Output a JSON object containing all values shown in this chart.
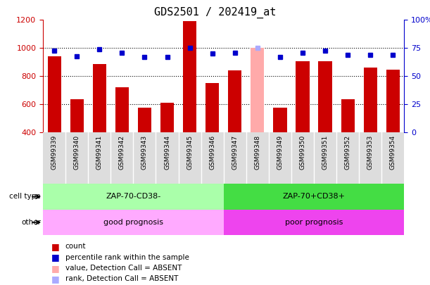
{
  "title": "GDS2501 / 202419_at",
  "samples": [
    "GSM99339",
    "GSM99340",
    "GSM99341",
    "GSM99342",
    "GSM99343",
    "GSM99344",
    "GSM99345",
    "GSM99346",
    "GSM99347",
    "GSM99348",
    "GSM99349",
    "GSM99350",
    "GSM99351",
    "GSM99352",
    "GSM99353",
    "GSM99354"
  ],
  "bar_values": [
    940,
    635,
    885,
    720,
    575,
    610,
    1190,
    750,
    840,
    1000,
    575,
    905,
    905,
    635,
    860,
    845
  ],
  "dot_values": [
    73,
    68,
    74,
    71,
    67,
    67,
    75,
    70,
    71,
    75,
    67,
    71,
    73,
    69,
    69,
    69
  ],
  "absent_indices": [
    9
  ],
  "cell_type_labels": [
    "ZAP-70-CD38-",
    "ZAP-70+CD38+"
  ],
  "cell_type_split": 8,
  "other_labels": [
    "good prognosis",
    "poor prognosis"
  ],
  "cell_type_color_left": "#aaffaa",
  "cell_type_color_right": "#44dd44",
  "other_color_left": "#ffaaff",
  "other_color_right": "#ee44ee",
  "bar_color_normal": "#cc0000",
  "bar_color_absent": "#ffaaaa",
  "dot_color_normal": "#0000cc",
  "dot_color_absent": "#aaaaff",
  "ylim_left": [
    400,
    1200
  ],
  "ylim_right": [
    0,
    100
  ],
  "yticks_left": [
    400,
    600,
    800,
    1000,
    1200
  ],
  "yticks_right": [
    0,
    25,
    50,
    75,
    100
  ],
  "legend_items": [
    {
      "label": "count",
      "color": "#cc0000"
    },
    {
      "label": "percentile rank within the sample",
      "color": "#0000cc"
    },
    {
      "label": "value, Detection Call = ABSENT",
      "color": "#ffaaaa"
    },
    {
      "label": "rank, Detection Call = ABSENT",
      "color": "#aaaaff"
    }
  ],
  "title_fontsize": 11,
  "tick_label_color_left": "#cc0000",
  "tick_label_color_right": "#0000cc",
  "xtick_bg_color": "#dddddd"
}
